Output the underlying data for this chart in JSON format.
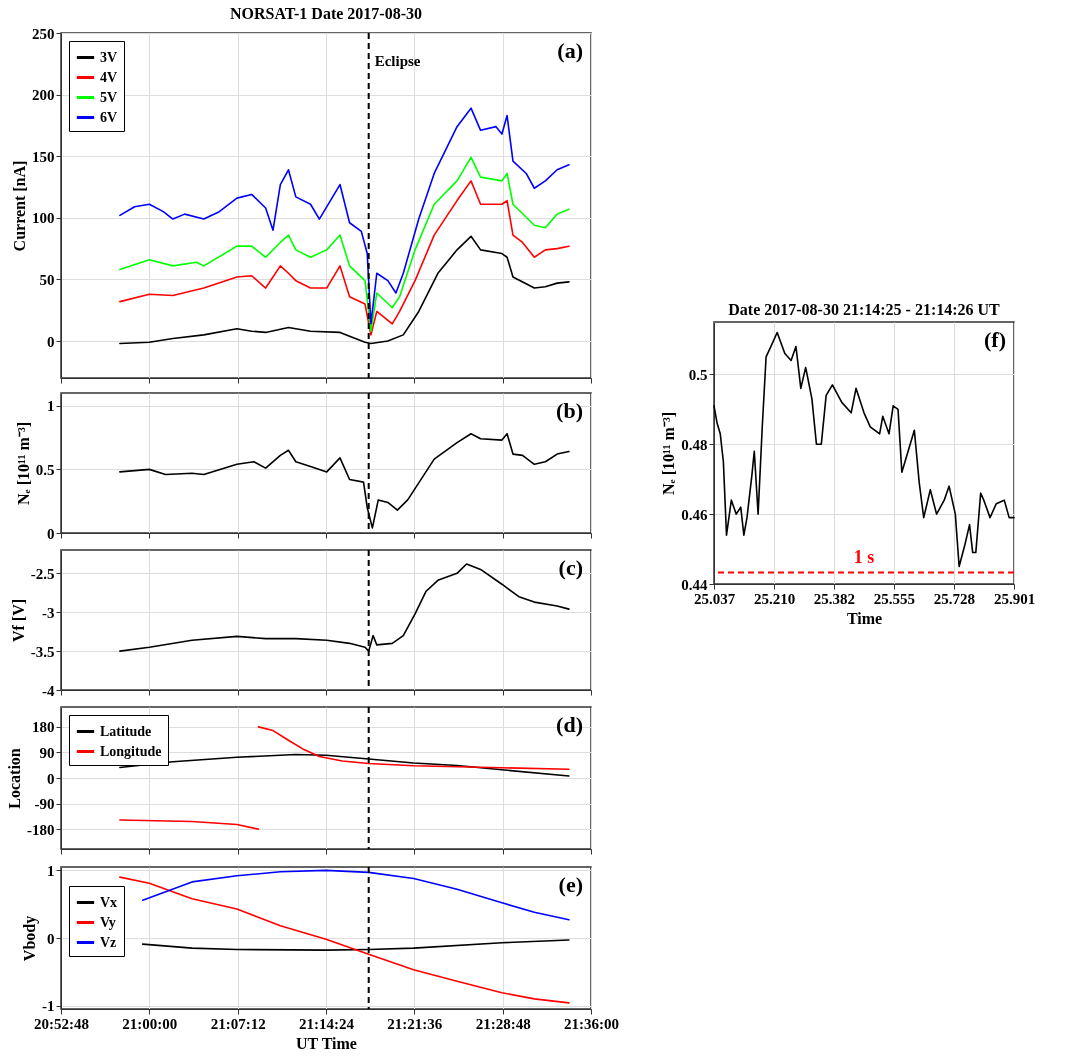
{
  "chart_data": [
    {
      "type": "line",
      "title": "NORSAT-1 Date 2017-08-30",
      "ylabel": "Current [nA]",
      "xlim": [
        20.88,
        21.6
      ],
      "xticks": [
        20.88,
        21.0,
        21.12,
        21.24,
        21.36,
        21.48,
        21.6
      ],
      "ylim": [
        -30,
        250
      ],
      "yticks": [
        0,
        50,
        100,
        150,
        200,
        250
      ],
      "grid": true,
      "legend": "top left",
      "tick_labels": "y",
      "ref_lines": [
        {
          "axis": "x",
          "value": 21.298,
          "label": "Eclipse",
          "color": "#000000",
          "line_style": "dashed"
        }
      ],
      "annotations": [
        "(a)"
      ],
      "series": [
        {
          "name": "3V",
          "color": "#000000",
          "x": [
            20.96,
            21.0,
            21.032,
            21.074,
            21.119,
            21.139,
            21.158,
            21.189,
            21.219,
            21.259,
            21.293,
            21.301,
            21.324,
            21.345,
            21.366,
            21.392,
            21.418,
            21.437,
            21.45,
            21.479,
            21.486,
            21.494,
            21.523,
            21.538,
            21.554,
            21.57
          ],
          "values": [
            -2,
            -1,
            2,
            5,
            10,
            8,
            7,
            11,
            8,
            7,
            -1,
            -2,
            0,
            5,
            24,
            55,
            74,
            85,
            74,
            71,
            68,
            52,
            43,
            44,
            47,
            48
          ]
        },
        {
          "name": "4V",
          "color": "#ff0000",
          "x": [
            20.96,
            21.0,
            21.032,
            21.074,
            21.119,
            21.139,
            21.158,
            21.178,
            21.189,
            21.199,
            21.219,
            21.241,
            21.259,
            21.272,
            21.293,
            21.301,
            21.309,
            21.33,
            21.34,
            21.361,
            21.387,
            21.418,
            21.437,
            21.45,
            21.479,
            21.486,
            21.494,
            21.507,
            21.523,
            21.538,
            21.554,
            21.57
          ],
          "values": [
            32,
            38,
            37,
            43,
            52,
            53,
            43,
            61,
            55,
            49,
            43,
            43,
            61,
            36,
            30,
            5,
            24,
            14,
            24,
            49,
            86,
            114,
            130,
            111,
            111,
            114,
            86,
            80,
            68,
            74,
            75,
            77
          ]
        },
        {
          "name": "5V",
          "color": "#00ff00",
          "x": [
            20.96,
            21.0,
            21.032,
            21.064,
            21.074,
            21.119,
            21.139,
            21.158,
            21.178,
            21.189,
            21.199,
            21.219,
            21.241,
            21.259,
            21.272,
            21.293,
            21.301,
            21.309,
            21.33,
            21.34,
            21.361,
            21.387,
            21.418,
            21.437,
            21.45,
            21.479,
            21.486,
            21.494,
            21.523,
            21.538,
            21.554,
            21.57
          ],
          "values": [
            58,
            66,
            61,
            64,
            61,
            77,
            77,
            68,
            80,
            86,
            74,
            68,
            74,
            86,
            61,
            49,
            8,
            39,
            27,
            36,
            74,
            111,
            130,
            149,
            133,
            130,
            136,
            111,
            94,
            92,
            103,
            107
          ]
        },
        {
          "name": "6V",
          "color": "#0000ff",
          "x": [
            20.96,
            20.98,
            21.0,
            21.019,
            21.032,
            21.048,
            21.074,
            21.095,
            21.119,
            21.139,
            21.158,
            21.168,
            21.178,
            21.189,
            21.199,
            21.219,
            21.231,
            21.259,
            21.272,
            21.288,
            21.296,
            21.301,
            21.309,
            21.324,
            21.335,
            21.345,
            21.366,
            21.387,
            21.418,
            21.437,
            21.45,
            21.471,
            21.479,
            21.486,
            21.494,
            21.512,
            21.523,
            21.538,
            21.554,
            21.57
          ],
          "values": [
            102,
            109,
            111,
            105,
            99,
            103,
            99,
            105,
            116,
            119,
            108,
            90,
            127,
            139,
            117,
            111,
            99,
            127,
            96,
            89,
            71,
            14,
            55,
            49,
            39,
            55,
            99,
            136,
            174,
            189,
            171,
            174,
            168,
            183,
            146,
            136,
            124,
            130,
            139,
            143
          ]
        }
      ]
    },
    {
      "type": "line",
      "ylabel": "Nₑ [10¹¹ m⁻³]",
      "xlim": [
        20.88,
        21.6
      ],
      "xticks": [
        20.88,
        21.0,
        21.12,
        21.24,
        21.36,
        21.48,
        21.6
      ],
      "ylim": [
        0,
        1.1
      ],
      "yticks": [
        0,
        0.5,
        1
      ],
      "grid": true,
      "tick_labels": "y",
      "ref_lines": [
        {
          "axis": "x",
          "value": 21.298,
          "color": "#000000",
          "line_style": "dashed"
        }
      ],
      "annotations": [
        "(b)"
      ],
      "series": [
        {
          "color": "#000000",
          "x": [
            20.96,
            21.0,
            21.022,
            21.058,
            21.074,
            21.119,
            21.142,
            21.158,
            21.178,
            21.189,
            21.199,
            21.22,
            21.241,
            21.259,
            21.272,
            21.291,
            21.296,
            21.303,
            21.311,
            21.324,
            21.337,
            21.351,
            21.387,
            21.418,
            21.437,
            21.45,
            21.479,
            21.486,
            21.494,
            21.507,
            21.523,
            21.538,
            21.554,
            21.57
          ],
          "values": [
            0.48,
            0.5,
            0.46,
            0.47,
            0.46,
            0.54,
            0.56,
            0.51,
            0.61,
            0.65,
            0.56,
            0.52,
            0.48,
            0.59,
            0.42,
            0.4,
            0.2,
            0.04,
            0.26,
            0.24,
            0.18,
            0.26,
            0.58,
            0.71,
            0.78,
            0.74,
            0.73,
            0.78,
            0.62,
            0.61,
            0.54,
            0.56,
            0.62,
            0.64
          ]
        }
      ]
    },
    {
      "type": "line",
      "ylabel": "Vf [V]",
      "xlim": [
        20.88,
        21.6
      ],
      "xticks": [
        20.88,
        21.0,
        21.12,
        21.24,
        21.36,
        21.48,
        21.6
      ],
      "ylim": [
        -4,
        -2.2
      ],
      "yticks": [
        -4,
        -3.5,
        -3,
        -2.5
      ],
      "grid": true,
      "tick_labels": "y",
      "ref_lines": [
        {
          "axis": "x",
          "value": 21.298,
          "color": "#000000",
          "line_style": "dashed"
        }
      ],
      "annotations": [
        "(c)"
      ],
      "series": [
        {
          "color": "#000000",
          "x": [
            20.96,
            21.0,
            21.058,
            21.119,
            21.158,
            21.199,
            21.241,
            21.272,
            21.293,
            21.298,
            21.304,
            21.309,
            21.33,
            21.345,
            21.361,
            21.376,
            21.392,
            21.418,
            21.431,
            21.45,
            21.479,
            21.502,
            21.523,
            21.554,
            21.57
          ],
          "values": [
            -3.5,
            -3.45,
            -3.36,
            -3.31,
            -3.34,
            -3.34,
            -3.36,
            -3.4,
            -3.45,
            -3.5,
            -3.3,
            -3.42,
            -3.4,
            -3.3,
            -3.02,
            -2.73,
            -2.59,
            -2.5,
            -2.38,
            -2.45,
            -2.64,
            -2.8,
            -2.87,
            -2.92,
            -2.96
          ]
        }
      ]
    },
    {
      "type": "line",
      "ylabel": "Location",
      "xlim": [
        20.88,
        21.6
      ],
      "xticks": [
        20.88,
        21.0,
        21.12,
        21.24,
        21.36,
        21.48,
        21.6
      ],
      "ylim": [
        -250,
        250
      ],
      "yticks": [
        -180,
        -90,
        0,
        90,
        180
      ],
      "grid": true,
      "legend": "top left",
      "tick_labels": "y",
      "ref_lines": [
        {
          "axis": "x",
          "value": 21.298,
          "color": "#000000",
          "line_style": "dashed"
        }
      ],
      "annotations": [
        "(d)"
      ],
      "series": [
        {
          "name": "Latitude",
          "color": "#000000",
          "x": [
            20.96,
            21.032,
            21.119,
            21.199,
            21.24,
            21.298,
            21.359,
            21.418,
            21.479,
            21.57
          ],
          "values": [
            37,
            57,
            73,
            83,
            80,
            67,
            53,
            44,
            29,
            7
          ]
        },
        {
          "name": "Longitude",
          "color": "#ff0000",
          "x": [
            20.96,
            21.058,
            21.119,
            21.148,
            21.1481,
            21.1482,
            21.168,
            21.189,
            21.21,
            21.231,
            21.262,
            21.298,
            21.359,
            21.479,
            21.57
          ],
          "values": [
            -148,
            -153,
            -164,
            -180,
            null,
            180,
            167,
            133,
            100,
            76,
            60,
            51,
            43,
            36,
            31
          ]
        }
      ]
    },
    {
      "type": "line",
      "xlabel": "UT Time",
      "ylabel": "Vbody",
      "xlim": [
        20.88,
        21.6
      ],
      "xticks": [
        {
          "value": 20.88,
          "label": "20:52:48"
        },
        {
          "value": 21.0,
          "label": "21:00:00"
        },
        {
          "value": 21.12,
          "label": "21:07:12"
        },
        {
          "value": 21.24,
          "label": "21:14:24"
        },
        {
          "value": 21.36,
          "label": "21:21:36"
        },
        {
          "value": 21.48,
          "label": "21:28:48"
        },
        {
          "value": 21.6,
          "label": "21:36:00"
        }
      ],
      "ylim": [
        -1.05,
        1.05
      ],
      "yticks": [
        -1,
        0,
        1
      ],
      "grid": true,
      "legend": "left",
      "ref_lines": [
        {
          "axis": "x",
          "value": 21.298,
          "color": "#000000",
          "line_style": "dashed"
        }
      ],
      "annotations": [
        "(e)"
      ],
      "series": [
        {
          "name": "Vx",
          "color": "#000000",
          "x": [
            20.991,
            21.058,
            21.119,
            21.24,
            21.298,
            21.359,
            21.479,
            21.57
          ],
          "values": [
            -0.09,
            -0.15,
            -0.17,
            -0.18,
            -0.17,
            -0.15,
            -0.07,
            -0.03
          ]
        },
        {
          "name": "Vy",
          "color": "#ff0000",
          "x": [
            20.96,
            21.0,
            21.058,
            21.119,
            21.178,
            21.24,
            21.298,
            21.359,
            21.418,
            21.479,
            21.523,
            21.57
          ],
          "values": [
            0.9,
            0.81,
            0.58,
            0.43,
            0.18,
            -0.02,
            -0.24,
            -0.47,
            -0.64,
            -0.81,
            -0.9,
            -0.96
          ]
        },
        {
          "name": "Vz",
          "color": "#0000ff",
          "x": [
            20.991,
            21.058,
            21.119,
            21.178,
            21.24,
            21.298,
            21.359,
            21.418,
            21.479,
            21.523,
            21.57
          ],
          "values": [
            0.56,
            0.83,
            0.92,
            0.98,
            1.0,
            0.97,
            0.88,
            0.72,
            0.52,
            0.38,
            0.27
          ]
        }
      ]
    },
    {
      "type": "line",
      "title": "Date 2017-08-30    21:14:25 - 21:14:26 UT",
      "xlabel": "Time",
      "ylabel": "Nₑ [10¹¹ m⁻³]",
      "xlim": [
        25.037,
        25.901
      ],
      "xticks": [
        25.037,
        {
          "value": 25.21,
          "label": "25.210"
        },
        25.382,
        25.555,
        25.728,
        25.901
      ],
      "ylim": [
        0.44,
        0.515
      ],
      "yticks": [
        0.44,
        0.46,
        0.48,
        0.5
      ],
      "grid": true,
      "ref_lines": [
        {
          "axis": "y",
          "value": 0.4433,
          "label": "1 s",
          "color": "#ff0000",
          "line_style": "dashed"
        }
      ],
      "annotations": [
        "(f)"
      ],
      "series": [
        {
          "color": "#000000",
          "x": [
            25.037,
            25.046,
            25.055,
            25.064,
            25.073,
            25.087,
            25.101,
            25.114,
            25.123,
            25.132,
            25.146,
            25.153,
            25.164,
            25.176,
            25.187,
            25.201,
            25.219,
            25.241,
            25.259,
            25.273,
            25.287,
            25.301,
            25.319,
            25.332,
            25.346,
            25.36,
            25.378,
            25.405,
            25.432,
            25.446,
            25.469,
            25.487,
            25.514,
            25.523,
            25.541,
            25.553,
            25.567,
            25.578,
            25.596,
            25.614,
            25.628,
            25.641,
            25.66,
            25.678,
            25.7,
            25.714,
            25.732,
            25.743,
            25.759,
            25.773,
            25.782,
            25.791,
            25.805,
            25.814,
            25.832,
            25.85,
            25.873,
            25.887,
            25.901
          ],
          "values": [
            0.491,
            0.486,
            0.483,
            0.475,
            0.454,
            0.464,
            0.46,
            0.462,
            0.454,
            0.459,
            0.471,
            0.478,
            0.46,
            0.485,
            0.505,
            0.508,
            0.512,
            0.506,
            0.504,
            0.508,
            0.496,
            0.502,
            0.493,
            0.48,
            0.48,
            0.494,
            0.497,
            0.492,
            0.489,
            0.496,
            0.489,
            0.485,
            0.483,
            0.488,
            0.483,
            0.491,
            0.49,
            0.472,
            0.478,
            0.484,
            0.469,
            0.459,
            0.467,
            0.46,
            0.464,
            0.468,
            0.46,
            0.445,
            0.451,
            0.457,
            0.449,
            0.449,
            0.466,
            0.464,
            0.459,
            0.463,
            0.464,
            0.459,
            0.459
          ]
        }
      ]
    }
  ]
}
